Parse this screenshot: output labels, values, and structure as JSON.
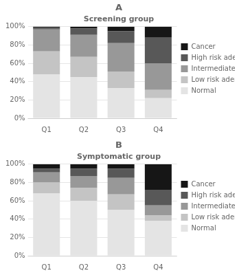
{
  "chart_data": [
    {
      "type": "bar",
      "title": "A",
      "subtitle": "Screening group",
      "categories": [
        "Q1",
        "Q2",
        "Q3",
        "Q4"
      ],
      "series": [
        {
          "name": "Normal",
          "color": "#e4e4e4",
          "values": [
            48,
            45,
            33,
            22
          ]
        },
        {
          "name": "Low risk adenoma",
          "color": "#c4c4c4",
          "values": [
            25,
            22,
            18,
            9
          ]
        },
        {
          "name": "Intermediate risk",
          "color": "#989898",
          "values": [
            24,
            24,
            31,
            29
          ]
        },
        {
          "name": "High risk adenoma",
          "color": "#585858",
          "values": [
            2,
            7,
            13,
            28
          ]
        },
        {
          "name": "Cancer",
          "color": "#161616",
          "values": [
            1,
            2,
            5,
            12
          ]
        }
      ],
      "stacked": true,
      "ylim": [
        0,
        100
      ],
      "yticks": [
        {
          "value": 0,
          "label": "0%"
        },
        {
          "value": 20,
          "label": "20%"
        },
        {
          "value": 40,
          "label": "40%"
        },
        {
          "value": 60,
          "label": "60%"
        },
        {
          "value": 80,
          "label": "80%"
        },
        {
          "value": 100,
          "label": "100%"
        }
      ],
      "grid": true,
      "legend": "right"
    },
    {
      "type": "bar",
      "title": "B",
      "subtitle": "Symptomatic group",
      "categories": [
        "Q1",
        "Q2",
        "Q3",
        "Q4"
      ],
      "series": [
        {
          "name": "Normal",
          "color": "#e4e4e4",
          "values": [
            68,
            60,
            50,
            38
          ]
        },
        {
          "name": "Low risk adenoma",
          "color": "#c4c4c4",
          "values": [
            12,
            14,
            17,
            6
          ]
        },
        {
          "name": "Intermediate risk",
          "color": "#989898",
          "values": [
            11,
            13,
            18,
            11
          ]
        },
        {
          "name": "High risk adenoma",
          "color": "#585858",
          "values": [
            4,
            8,
            10,
            17
          ]
        },
        {
          "name": "Cancer",
          "color": "#161616",
          "values": [
            5,
            5,
            5,
            28
          ]
        }
      ],
      "stacked": true,
      "ylim": [
        0,
        100
      ],
      "yticks": [
        {
          "value": 0,
          "label": "0%"
        },
        {
          "value": 20,
          "label": "20%"
        },
        {
          "value": 40,
          "label": "40%"
        },
        {
          "value": 60,
          "label": "60%"
        },
        {
          "value": 80,
          "label": "80%"
        },
        {
          "value": 100,
          "label": "100%"
        }
      ],
      "grid": true,
      "legend": "right"
    }
  ]
}
